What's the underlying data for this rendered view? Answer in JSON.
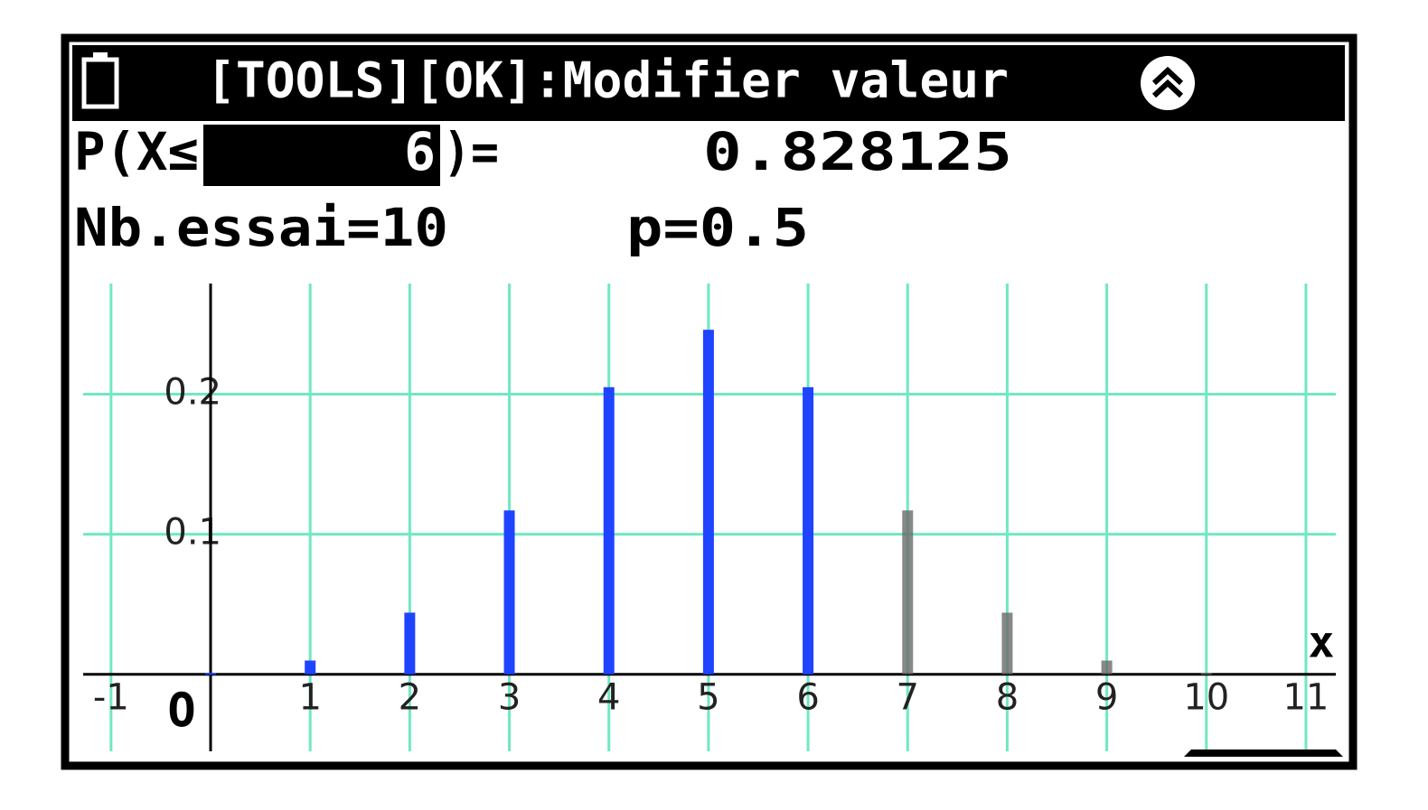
{
  "header": {
    "title": "[TOOLS][OK]:Modifier valeur"
  },
  "formula": {
    "prefix": "P(X≤",
    "bound": 6,
    "suffix": ")=",
    "result": "0.828125"
  },
  "parameters": {
    "trials": "Nb.essai=10",
    "p": "p=0.5"
  },
  "chart_data": {
    "type": "bar",
    "x": [
      0,
      1,
      2,
      3,
      4,
      5,
      6,
      7,
      8,
      9,
      10
    ],
    "values": [
      0.001,
      0.0098,
      0.044,
      0.117,
      0.205,
      0.246,
      0.205,
      0.117,
      0.044,
      0.0098,
      0.001
    ],
    "color": "#1f44ff",
    "color_rest": "#6a6a6a",
    "xlim": [
      -1.28,
      11.3
    ],
    "ylim": [
      -0.055,
      0.279
    ],
    "xticks": [
      -1,
      1,
      2,
      3,
      4,
      5,
      6,
      7,
      8,
      9,
      10,
      11
    ],
    "yticks": [
      0.1,
      0.2
    ],
    "origin_label": "O",
    "x_label": "x",
    "grid": true,
    "grid_color": "#6fe8c4"
  }
}
